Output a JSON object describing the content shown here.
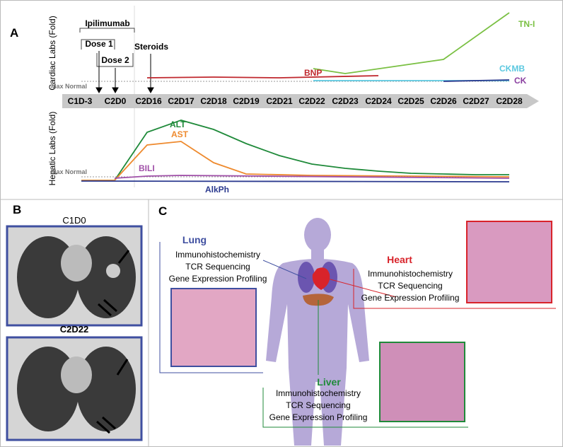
{
  "panel_a": {
    "label": "A",
    "cardiac_axis": "Cardiac Labs (Fold)",
    "hepatic_axis": "Hepatic Labs (Fold)",
    "max_normal": "Max Normal",
    "timeline": [
      "C1D-3",
      "C2D0",
      "C2D16",
      "C2D17",
      "C2D18",
      "C2D19",
      "C2D21",
      "C2D22",
      "C2D23",
      "C2D24",
      "C2D25",
      "C2D26",
      "C2D27",
      "C2D28"
    ],
    "annotations": {
      "ipilimumab": "Ipilimumab",
      "dose1": "Dose 1",
      "dose2": "Dose 2",
      "steroids": "Steroids"
    },
    "cardiac_series": {
      "tni": "TN-I",
      "bnp": "BNP",
      "ckmb": "CKMB",
      "ck": "CK"
    },
    "hepatic_series": {
      "alt": "ALT",
      "ast": "AST",
      "bili": "BILI",
      "alkph": "AlkPh"
    }
  },
  "panel_b": {
    "label": "B",
    "scan1": "C1D0",
    "scan2": "C2D22"
  },
  "panel_c": {
    "label": "C",
    "lung": {
      "title": "Lung",
      "lines": [
        "Immunohistochemistry",
        "TCR Sequencing",
        "Gene Expression Profiling"
      ]
    },
    "heart": {
      "title": "Heart",
      "lines": [
        "Immunohistochemistry",
        "TCR Sequencing",
        "Gene Expression Profiling"
      ]
    },
    "liver": {
      "title": "Liver",
      "lines": [
        "Immunohistochemistry",
        "TCR Sequencing",
        "Gene Expression Profiling"
      ]
    }
  }
}
